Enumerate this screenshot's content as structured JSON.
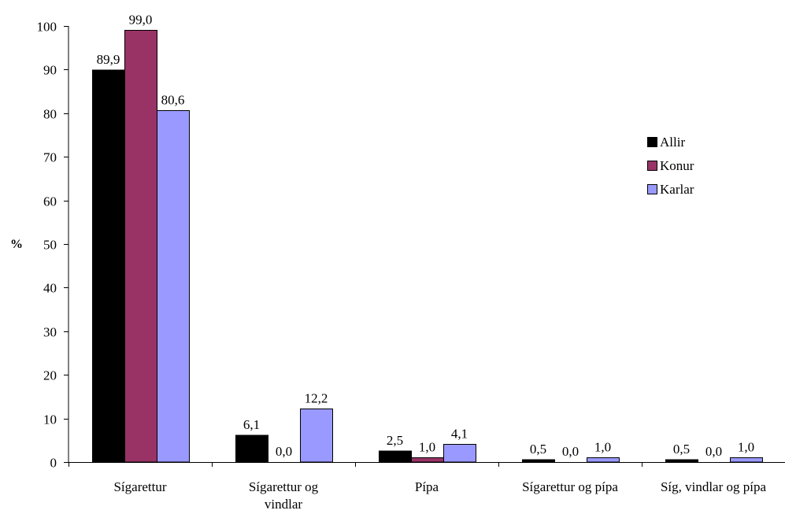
{
  "chart_data": {
    "type": "bar",
    "categories": [
      [
        "Sígarettur"
      ],
      [
        "Sígarettur og",
        "vindlar"
      ],
      [
        "Pípa"
      ],
      [
        "Sígarettur og pípa"
      ],
      [
        "Síg, vindlar og pípa"
      ]
    ],
    "series": [
      {
        "name": "Allir",
        "color": "#000000",
        "values": [
          89.9,
          6.1,
          2.5,
          0.5,
          0.5
        ],
        "labels": [
          "89,9",
          "6,1",
          "2,5",
          "0,5",
          "0,5"
        ]
      },
      {
        "name": "Konur",
        "color": "#993366",
        "values": [
          99.0,
          0.0,
          1.0,
          0.0,
          0.0
        ],
        "labels": [
          "99,0",
          "0,0",
          "1,0",
          "0,0",
          "0,0"
        ]
      },
      {
        "name": "Karlar",
        "color": "#9999ff",
        "values": [
          80.6,
          12.2,
          4.1,
          1.0,
          1.0
        ],
        "labels": [
          "80,6",
          "12,2",
          "4,1",
          "1,0",
          "1,0"
        ]
      }
    ],
    "title": "",
    "xlabel": "",
    "ylabel": "%",
    "ylim": [
      0,
      100
    ],
    "yticks": [
      0,
      10,
      20,
      30,
      40,
      50,
      60,
      70,
      80,
      90,
      100
    ],
    "grid": false,
    "legend_position": "right"
  }
}
